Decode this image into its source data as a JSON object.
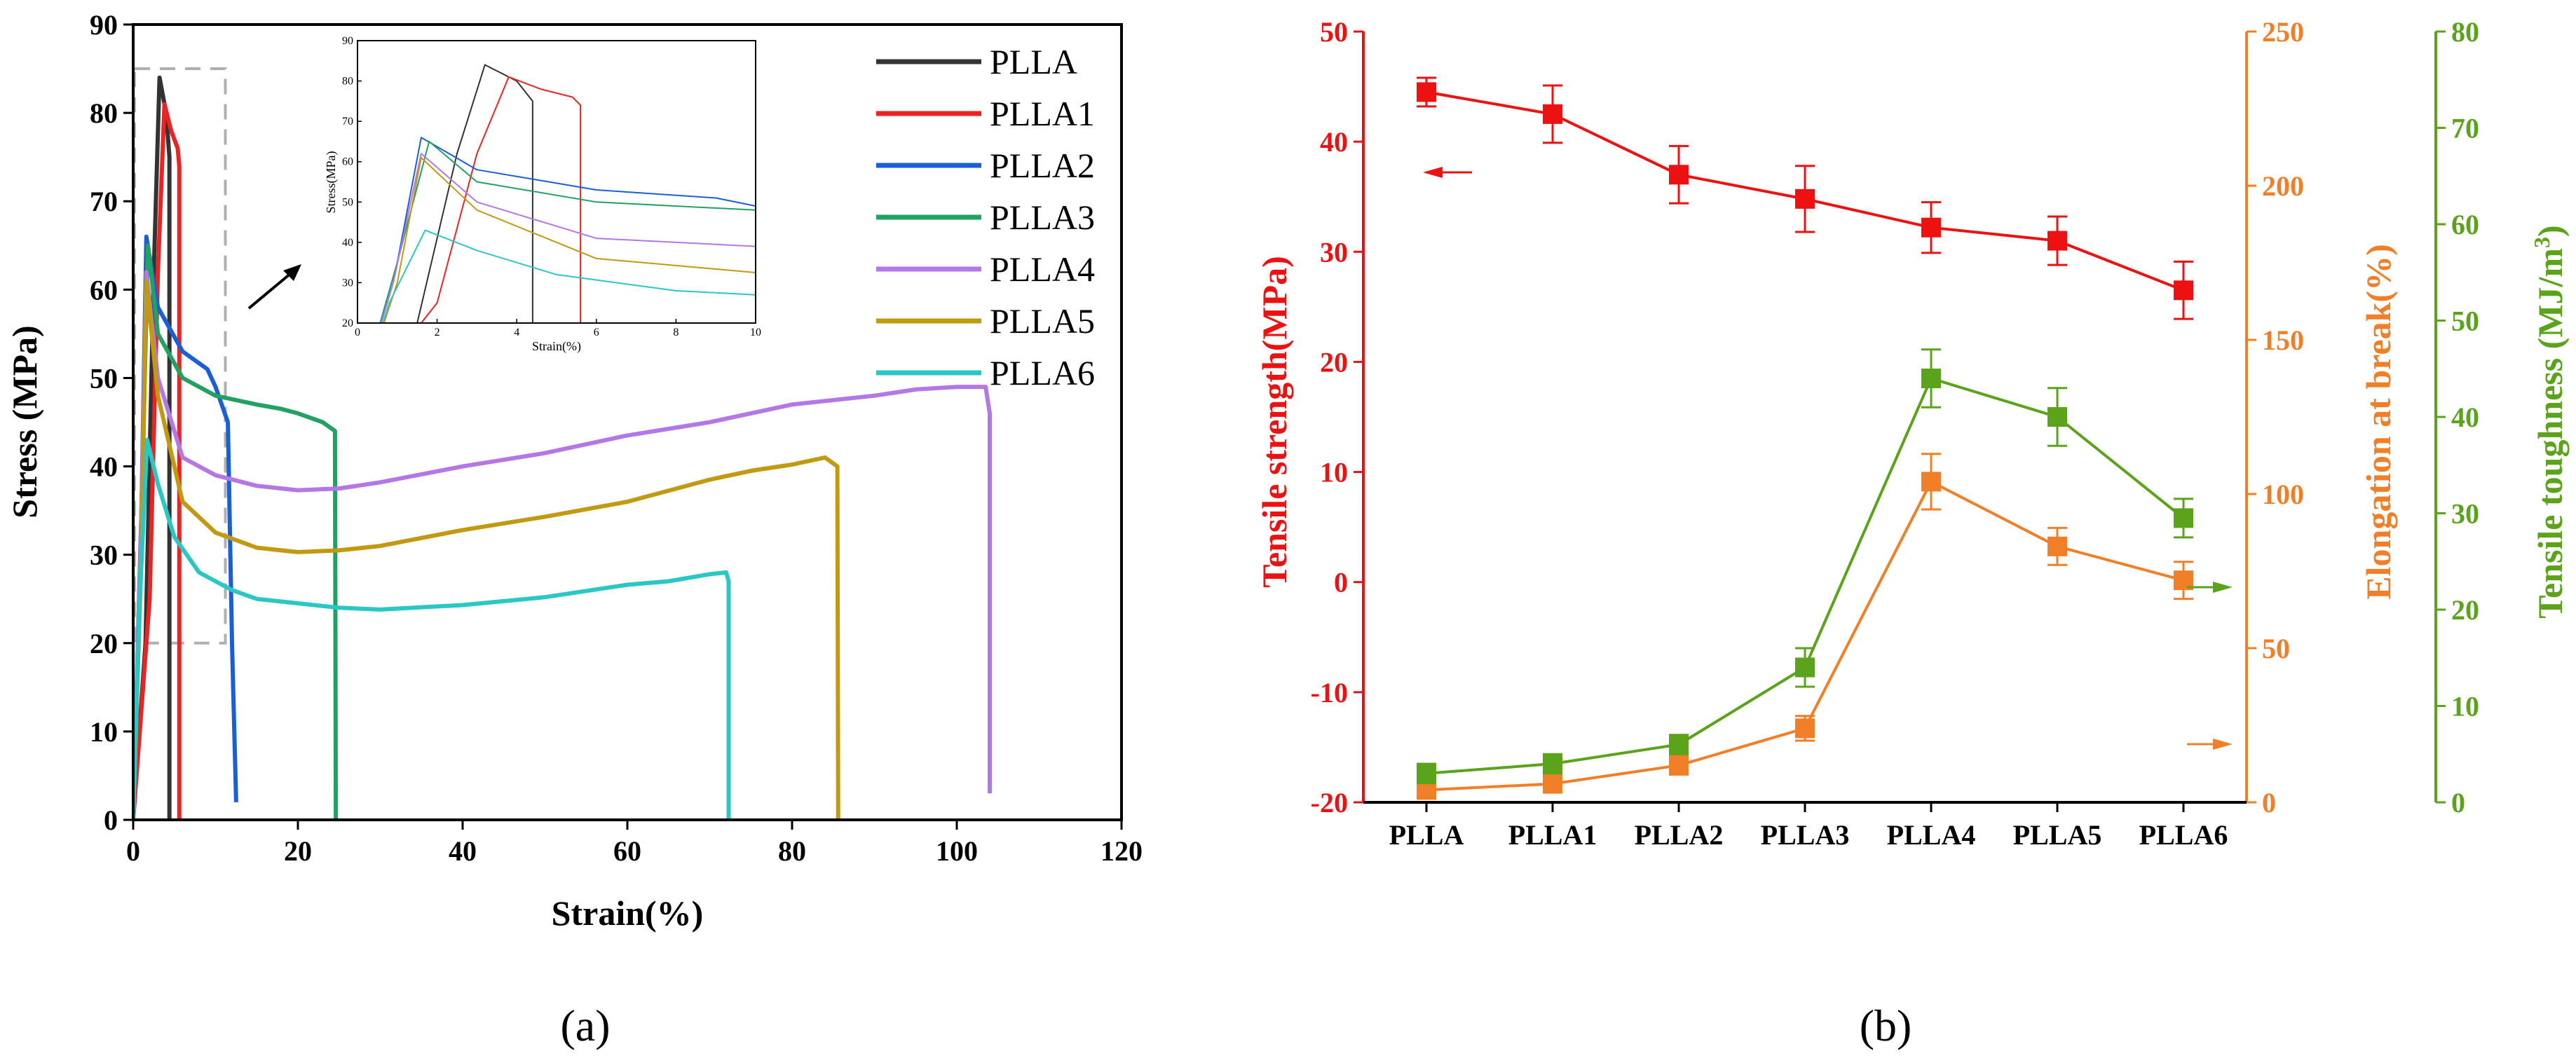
{
  "colors": {
    "PLLA": "#333333",
    "PLLA1": "#ee2222",
    "PLLA2": "#1a5fd6",
    "PLLA3": "#21a162",
    "PLLA4": "#b377e6",
    "PLLA5": "#c29a12",
    "PLLA6": "#2ac7c4",
    "strength": "#ee1111",
    "elongation": "#f07f28",
    "toughness": "#5aa31a"
  },
  "chart_data": [
    {
      "panel": "(a)",
      "type": "line",
      "title": "",
      "xlabel": "Strain(%)",
      "ylabel": "Stress (MPa)",
      "xlim": [
        0,
        120
      ],
      "ylim": [
        0,
        90
      ],
      "xticks": [
        "0",
        "20",
        "40",
        "60",
        "80",
        "100",
        "120"
      ],
      "yticks": [
        "0",
        "10",
        "20",
        "30",
        "40",
        "50",
        "60",
        "70",
        "80",
        "90"
      ],
      "series": [
        {
          "name": "PLLA",
          "color_key": "PLLA",
          "points": [
            [
              0,
              0
            ],
            [
              1.5,
              20
            ],
            [
              2.5,
              62
            ],
            [
              3.2,
              84
            ],
            [
              4,
              80
            ],
            [
              4.4,
              75
            ],
            [
              4.4,
              0
            ]
          ]
        },
        {
          "name": "PLLA1",
          "color_key": "PLLA1",
          "points": [
            [
              0,
              0
            ],
            [
              2,
              25
            ],
            [
              3,
              62
            ],
            [
              3.8,
              81
            ],
            [
              4.6,
              78
            ],
            [
              5.4,
              76
            ],
            [
              5.6,
              74
            ],
            [
              5.6,
              0
            ]
          ]
        },
        {
          "name": "PLLA2",
          "color_key": "PLLA2",
          "points": [
            [
              0,
              0
            ],
            [
              1,
              35
            ],
            [
              1.6,
              66
            ],
            [
              3,
              58
            ],
            [
              6,
              53
            ],
            [
              9,
              51
            ],
            [
              10,
              49
            ],
            [
              11.5,
              45
            ],
            [
              12,
              20
            ],
            [
              12.5,
              2
            ]
          ]
        },
        {
          "name": "PLLA3",
          "color_key": "PLLA3",
          "points": [
            [
              0,
              0
            ],
            [
              1,
              35
            ],
            [
              1.8,
              65
            ],
            [
              3,
              55
            ],
            [
              6,
              50
            ],
            [
              10,
              48
            ],
            [
              15,
              47
            ],
            [
              18,
              46.5
            ],
            [
              20,
              46
            ],
            [
              23,
              45
            ],
            [
              24.5,
              44
            ],
            [
              24.6,
              0
            ]
          ]
        },
        {
          "name": "PLLA4",
          "color_key": "PLLA4",
          "points": [
            [
              0,
              0
            ],
            [
              0.9,
              30
            ],
            [
              1.6,
              62
            ],
            [
              3,
              50
            ],
            [
              6,
              41
            ],
            [
              10,
              39
            ],
            [
              15,
              37.8
            ],
            [
              20,
              37.3
            ],
            [
              25,
              37.5
            ],
            [
              30,
              38.2
            ],
            [
              40,
              40
            ],
            [
              50,
              41.5
            ],
            [
              60,
              43.5
            ],
            [
              70,
              45
            ],
            [
              80,
              47
            ],
            [
              90,
              48
            ],
            [
              95,
              48.7
            ],
            [
              100,
              49
            ],
            [
              103.5,
              49
            ],
            [
              104,
              46
            ],
            [
              104,
              3
            ]
          ]
        },
        {
          "name": "PLLA5",
          "color_key": "PLLA5",
          "points": [
            [
              0,
              0
            ],
            [
              1,
              30
            ],
            [
              1.6,
              61
            ],
            [
              3,
              48
            ],
            [
              6,
              36
            ],
            [
              10,
              32.5
            ],
            [
              15,
              30.8
            ],
            [
              20,
              30.3
            ],
            [
              25,
              30.5
            ],
            [
              30,
              31
            ],
            [
              40,
              32.8
            ],
            [
              50,
              34.3
            ],
            [
              60,
              36
            ],
            [
              70,
              38.5
            ],
            [
              75,
              39.5
            ],
            [
              80,
              40.2
            ],
            [
              84,
              41
            ],
            [
              85.5,
              40
            ],
            [
              85.6,
              0
            ]
          ]
        },
        {
          "name": "PLLA6",
          "color_key": "PLLA6",
          "points": [
            [
              0,
              0
            ],
            [
              0.8,
              25
            ],
            [
              1.7,
              43
            ],
            [
              3,
              38
            ],
            [
              5,
              32
            ],
            [
              8,
              28
            ],
            [
              12,
              26
            ],
            [
              15,
              25
            ],
            [
              20,
              24.5
            ],
            [
              25,
              24
            ],
            [
              30,
              23.8
            ],
            [
              40,
              24.3
            ],
            [
              50,
              25.2
            ],
            [
              60,
              26.6
            ],
            [
              65,
              27
            ],
            [
              70,
              27.8
            ],
            [
              72,
              28
            ],
            [
              72.3,
              27
            ],
            [
              72.3,
              0
            ]
          ]
        }
      ],
      "zoom_box": {
        "x": [
          0,
          10
        ],
        "y": [
          20,
          85
        ]
      },
      "inset": {
        "xlabel": "Strain(%)",
        "ylabel": "Stress(MPa)",
        "xlim": [
          0,
          10
        ],
        "ylim": [
          20,
          90
        ],
        "xticks": [
          "0",
          "2",
          "4",
          "6",
          "8",
          "10"
        ],
        "yticks": [
          "20",
          "30",
          "40",
          "50",
          "60",
          "70",
          "80",
          "90"
        ]
      }
    },
    {
      "panel": "(b)",
      "type": "line",
      "categories": [
        "PLLA",
        "PLLA1",
        "PLLA2",
        "PLLA3",
        "PLLA4",
        "PLLA5",
        "PLLA6"
      ],
      "y_left": {
        "label": "Tensile strength(MPa)",
        "lim": [
          -20,
          50
        ],
        "ticks": [
          "-20",
          "-10",
          "0",
          "10",
          "20",
          "30",
          "40",
          "50"
        ]
      },
      "y_right1": {
        "label": "Elongation at break(%)",
        "lim": [
          0,
          250
        ],
        "ticks": [
          "0",
          "50",
          "100",
          "150",
          "200",
          "250"
        ]
      },
      "y_right2": {
        "label": "Tensile toughness (MJ/m",
        "label_sup": "3",
        "label_end": ")",
        "lim": [
          0,
          80
        ],
        "ticks": [
          "0",
          "10",
          "20",
          "30",
          "40",
          "50",
          "60",
          "70",
          "80"
        ]
      },
      "series": [
        {
          "name": "Tensile strength",
          "axis": "left",
          "color_key": "strength",
          "values": [
            44.5,
            42.5,
            37,
            34.8,
            32.2,
            31,
            26.5
          ],
          "errors": [
            1.3,
            2.6,
            2.6,
            3,
            2.3,
            2.2,
            2.6
          ]
        },
        {
          "name": "Elongation at break",
          "axis": "right1",
          "color_key": "elongation",
          "values": [
            4,
            6,
            12,
            24,
            104,
            83,
            72
          ],
          "errors": [
            2,
            2,
            3,
            4,
            9,
            6,
            6
          ]
        },
        {
          "name": "Tensile toughness",
          "axis": "right2",
          "color_key": "toughness",
          "values": [
            3,
            4,
            6,
            14,
            44,
            40,
            29.5
          ],
          "errors": [
            1,
            1,
            1,
            2,
            3,
            3,
            2
          ]
        }
      ]
    }
  ],
  "labels": {
    "panel_a": "(a)",
    "panel_b": "(b)"
  }
}
